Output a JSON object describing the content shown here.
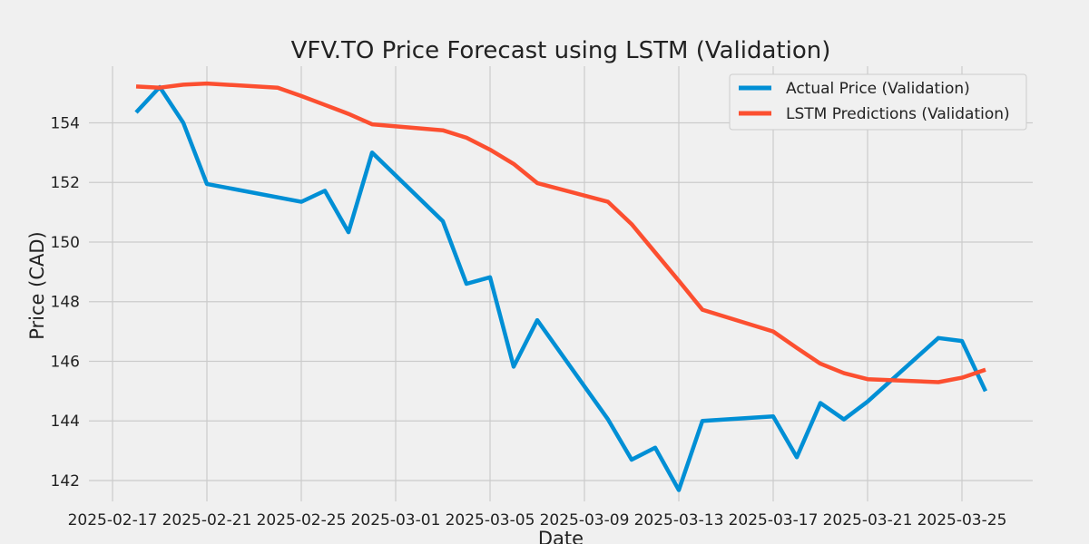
{
  "chart_data": {
    "type": "line",
    "title": "VFV.TO Price Forecast using LSTM (Validation)",
    "xlabel": "Date",
    "ylabel": "Price (CAD)",
    "xlim": [
      "2025-02-16",
      "2025-03-28"
    ],
    "ylim": [
      141.3,
      155.9
    ],
    "x_ticks": [
      "2025-02-17",
      "2025-02-21",
      "2025-02-25",
      "2025-03-01",
      "2025-03-05",
      "2025-03-09",
      "2025-03-13",
      "2025-03-17",
      "2025-03-21",
      "2025-03-25"
    ],
    "y_ticks": [
      142,
      144,
      146,
      148,
      150,
      152,
      154
    ],
    "grid": true,
    "legend_position": "top-right",
    "series": [
      {
        "name": "Actual Price (Validation)",
        "color": "#008fd5",
        "x": [
          "2025-02-18",
          "2025-02-19",
          "2025-02-20",
          "2025-02-21",
          "2025-02-25",
          "2025-02-26",
          "2025-02-27",
          "2025-02-28",
          "2025-03-03",
          "2025-03-04",
          "2025-03-05",
          "2025-03-06",
          "2025-03-07",
          "2025-03-10",
          "2025-03-11",
          "2025-03-12",
          "2025-03-13",
          "2025-03-14",
          "2025-03-17",
          "2025-03-18",
          "2025-03-19",
          "2025-03-20",
          "2025-03-21",
          "2025-03-24",
          "2025-03-25",
          "2025-03-26"
        ],
        "values": [
          154.35,
          155.2,
          154.0,
          151.95,
          151.35,
          151.72,
          150.33,
          153.0,
          150.7,
          148.6,
          148.82,
          145.82,
          147.38,
          144.05,
          142.7,
          143.1,
          141.68,
          144.0,
          144.15,
          142.78,
          144.6,
          144.05,
          144.65,
          146.78,
          146.68,
          145.0
        ]
      },
      {
        "name": "LSTM Predictions (Validation)",
        "color": "#fc4f30",
        "x": [
          "2025-02-18",
          "2025-02-19",
          "2025-02-20",
          "2025-02-21",
          "2025-02-24",
          "2025-02-25",
          "2025-02-26",
          "2025-02-27",
          "2025-02-28",
          "2025-03-03",
          "2025-03-04",
          "2025-03-05",
          "2025-03-06",
          "2025-03-07",
          "2025-03-10",
          "2025-03-11",
          "2025-03-12",
          "2025-03-13",
          "2025-03-14",
          "2025-03-17",
          "2025-03-18",
          "2025-03-19",
          "2025-03-20",
          "2025-03-21",
          "2025-03-24",
          "2025-03-25",
          "2025-03-26"
        ],
        "values": [
          155.22,
          155.18,
          155.28,
          155.32,
          155.18,
          154.9,
          154.6,
          154.3,
          153.95,
          153.75,
          153.5,
          153.1,
          152.62,
          151.98,
          151.35,
          150.6,
          149.65,
          148.7,
          147.73,
          147.0,
          146.45,
          145.92,
          145.6,
          145.4,
          145.3,
          145.45,
          145.72
        ]
      }
    ]
  }
}
